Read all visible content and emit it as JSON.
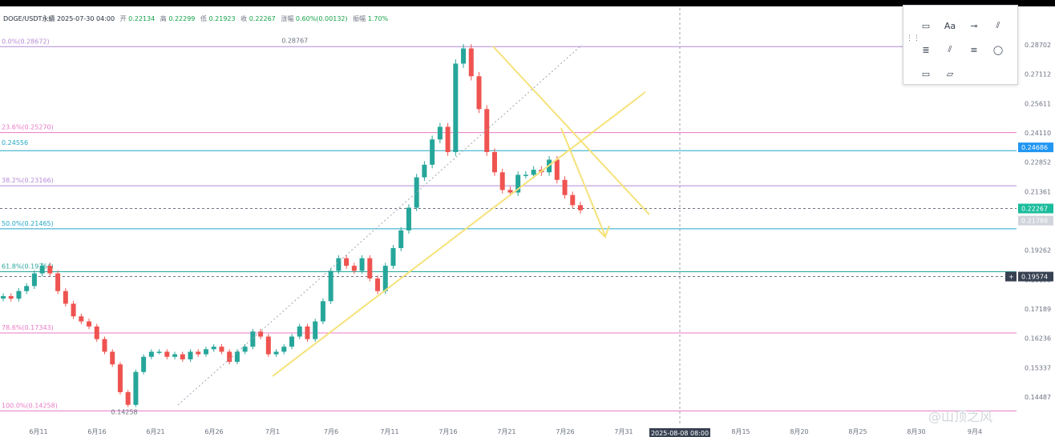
{
  "header": {
    "symbol": "DOGE/USDT永續",
    "datetime": "2025-07-30 04:00",
    "open_label": "开",
    "open": "0.22134",
    "high_label": "高",
    "high": "0.22299",
    "low_label": "低",
    "low": "0.21923",
    "close_label": "收",
    "close": "0.22267",
    "change_label": "涨幅",
    "change": "0.60%(0.00132)",
    "amp_label": "振幅",
    "amp": "1.70%"
  },
  "colors": {
    "up": "#26a69a",
    "down": "#ef5350",
    "fib_pink": "#e879c6",
    "fib_purple": "#b48ad6",
    "trend": "#f5e27a",
    "cyan_line": "#22a7c7",
    "tag_blue": "#2196f3",
    "tag_green": "#1abc9c"
  },
  "chart_data": {
    "type": "candlestick",
    "y_range": [
      0.1405,
      0.2925
    ],
    "x_tick_labels": [
      "6月11",
      "6月16",
      "6月21",
      "6月26",
      "7月1",
      "7月6",
      "7月11",
      "7月16",
      "7月21",
      "7月26",
      "7月31",
      "8月",
      "8月15",
      "8月20",
      "8月25",
      "8月30",
      "9月4"
    ],
    "crosshair_date": "2025-08-08 08:00",
    "y_tick_labels": [
      "0.28702",
      "0.27112",
      "0.25611",
      "0.24110",
      "0.22852",
      "0.21361",
      "0.20391",
      "0.19262",
      "0.18195",
      "0.17189",
      "0.16236",
      "0.15337",
      "0.14487"
    ],
    "fib_levels": [
      {
        "label": "0.0%(0.28672)",
        "value": 0.28672,
        "color": "#b48ad6"
      },
      {
        "label": "23.6%(0.25270)",
        "value": 0.2527,
        "color": "#e879c6"
      },
      {
        "label": "38.2%(0.23166)",
        "value": 0.23166,
        "color": "#b48ad6"
      },
      {
        "label": "50.0%(0.21465)",
        "value": 0.21465,
        "color": "#22a7c7"
      },
      {
        "label": "61.8%(0.19764)",
        "value": 0.19764,
        "color": "#26a69a"
      },
      {
        "label": "78.6%(0.17343)",
        "value": 0.17343,
        "color": "#e879c6"
      },
      {
        "label": "100.0%(0.14258)",
        "value": 0.14258,
        "color": "#e879c6"
      }
    ],
    "horizontal_line": {
      "label": "0.24556",
      "value": 0.24556
    },
    "dashed_lines": [
      0.22267,
      0.19574
    ],
    "price_tags": [
      {
        "label": "0.24686",
        "value": 0.24686,
        "color": "#2196f3"
      },
      {
        "label": "0.22267",
        "value": 0.22267,
        "color": "#1abc9c"
      },
      {
        "label": "0.21788",
        "value": 0.21788,
        "color": "#d1d5db"
      },
      {
        "label": "0.19574",
        "value": 0.19574,
        "color": "#374151"
      }
    ],
    "annotations": [
      {
        "text": "0.28767",
        "date_index": 40,
        "value": 0.28767
      },
      {
        "text": "0.14258",
        "date_index": 13,
        "value": 0.14258
      }
    ],
    "closes": [
      0.188,
      0.187,
      0.19,
      0.192,
      0.197,
      0.2,
      0.197,
      0.19,
      0.185,
      0.18,
      0.178,
      0.176,
      0.171,
      0.166,
      0.161,
      0.15,
      0.145,
      0.158,
      0.164,
      0.166,
      0.166,
      0.164,
      0.165,
      0.163,
      0.166,
      0.165,
      0.167,
      0.168,
      0.166,
      0.162,
      0.166,
      0.168,
      0.174,
      0.172,
      0.165,
      0.166,
      0.168,
      0.172,
      0.176,
      0.171,
      0.178,
      0.186,
      0.198,
      0.203,
      0.2,
      0.198,
      0.203,
      0.195,
      0.19,
      0.2,
      0.207,
      0.214,
      0.223,
      0.235,
      0.24,
      0.25,
      0.255,
      0.245,
      0.28,
      0.286,
      0.275,
      0.262,
      0.245,
      0.237,
      0.23,
      0.229,
      0.236,
      0.236,
      0.238,
      0.237,
      0.242,
      0.234,
      0.228,
      0.224,
      0.222
    ]
  },
  "watermark": "@山顶之风"
}
